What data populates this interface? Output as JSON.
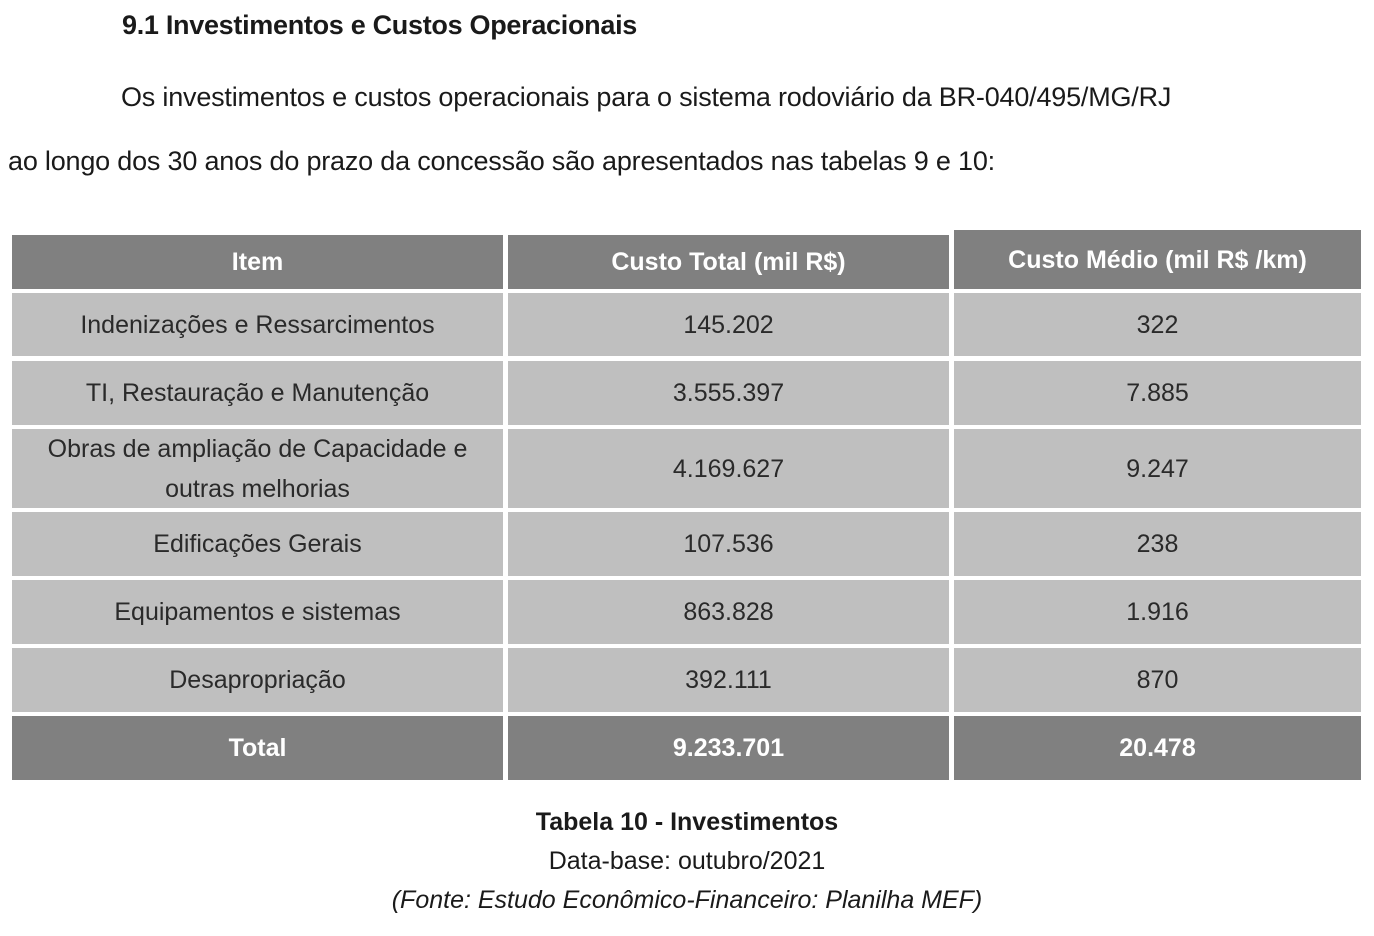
{
  "heading": "9.1 Investimentos e Custos Operacionais",
  "paragraph": {
    "line1": "Os investimentos e custos operacionais para o sistema rodoviário da BR-040/495/MG/RJ",
    "line2": "ao longo dos 30 anos do prazo da concessão são apresentados nas tabelas 9 e 10:"
  },
  "table": {
    "headers": [
      "Item",
      "Custo Total (mil R$)",
      "Custo Médio (mil R$ /km)"
    ],
    "rows": [
      [
        "Indenizações e Ressarcimentos",
        "145.202",
        "322"
      ],
      [
        "TI, Restauração e Manutenção",
        "3.555.397",
        "7.885"
      ],
      [
        "Obras de ampliação de Capacidade e outras melhorias",
        "4.169.627",
        "9.247"
      ],
      [
        "Edificações Gerais",
        "107.536",
        "238"
      ],
      [
        "Equipamentos e sistemas",
        "863.828",
        "1.916"
      ],
      [
        "Desapropriação",
        "392.111",
        "870"
      ]
    ],
    "total": [
      "Total",
      "9.233.701",
      "20.478"
    ],
    "colors": {
      "header": "#808080",
      "row": "#bfbfbf"
    }
  },
  "caption": {
    "title": "Tabela 10 - Investimentos",
    "date": "Data-base: outubro/2021",
    "source": "(Fonte: Estudo Econômico-Financeiro: Planilha MEF)"
  }
}
